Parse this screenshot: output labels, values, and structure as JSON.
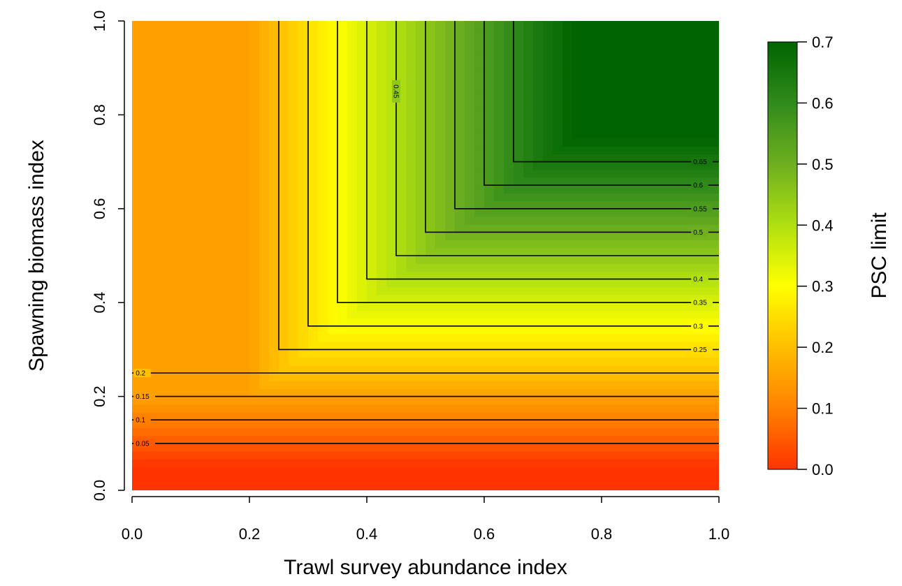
{
  "chart_data": {
    "type": "heatmap",
    "subtype": "filled-contour",
    "title": "",
    "xlabel": "Trawl survey abundance index",
    "ylabel": "Spawning biomass index",
    "colorbar_label": "PSC limit",
    "xlim": [
      0,
      1
    ],
    "ylim": [
      0,
      1
    ],
    "zlim": [
      0,
      0.7
    ],
    "x_ticks": [
      "0.0",
      "0.2",
      "0.4",
      "0.6",
      "0.8",
      "1.0"
    ],
    "y_ticks": [
      "0.0",
      "0.2",
      "0.4",
      "0.6",
      "0.8",
      "1.0"
    ],
    "colorbar_ticks": [
      "0.0",
      "0.1",
      "0.2",
      "0.3",
      "0.4",
      "0.5",
      "0.6",
      "0.7"
    ],
    "colorscale": [
      "#ff3300",
      "#ffb000",
      "#ffff00",
      "#80cc20",
      "#006400"
    ],
    "grid": false,
    "contours": [
      {
        "level": "0.05",
        "value": 0.05,
        "y": 0.1,
        "x": null
      },
      {
        "level": "0.1",
        "value": 0.1,
        "y": 0.15,
        "x": null
      },
      {
        "level": "0.15",
        "value": 0.15,
        "y": 0.2,
        "x": null
      },
      {
        "level": "0.2",
        "value": 0.2,
        "y": 0.25,
        "x": null
      },
      {
        "level": "0.25",
        "value": 0.25,
        "y": 0.3,
        "x": 0.25
      },
      {
        "level": "0.3",
        "value": 0.3,
        "y": 0.35,
        "x": 0.3
      },
      {
        "level": "0.35",
        "value": 0.35,
        "y": 0.4,
        "x": 0.35
      },
      {
        "level": "0.4",
        "value": 0.4,
        "y": 0.45,
        "x": 0.4
      },
      {
        "level": "0.45",
        "value": 0.45,
        "y": 0.5,
        "x": 0.45
      },
      {
        "level": "0.5",
        "value": 0.5,
        "y": 0.55,
        "x": 0.5
      },
      {
        "level": "0.55",
        "value": 0.55,
        "y": 0.6,
        "x": 0.55
      },
      {
        "level": "0.6",
        "value": 0.6,
        "y": 0.65,
        "x": 0.6
      },
      {
        "level": "0.65",
        "value": 0.65,
        "y": 0.7,
        "x": 0.65
      }
    ]
  }
}
